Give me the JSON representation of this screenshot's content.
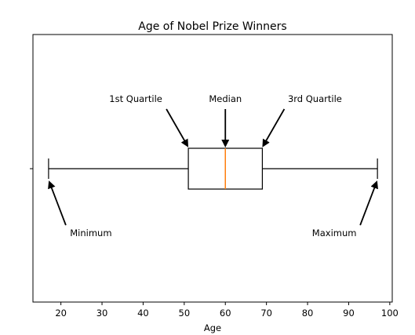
{
  "chart_data": {
    "type": "box",
    "title": "Age of Nobel Prize Winners",
    "xlabel": "Age",
    "ylabel": "",
    "xlim": [
      13.2,
      100.6
    ],
    "xticks": [
      20,
      30,
      40,
      50,
      60,
      70,
      80,
      90,
      100
    ],
    "box": {
      "min": 17,
      "q1": 51,
      "median": 60,
      "q3": 69,
      "max": 97
    },
    "colors": {
      "box": "#000000",
      "median": "#ff7f0e"
    },
    "annotations": [
      {
        "text": "1st Quartile",
        "target": "q1"
      },
      {
        "text": "Median",
        "target": "median"
      },
      {
        "text": "3rd Quartile",
        "target": "q3"
      },
      {
        "text": "Minimum",
        "target": "min"
      },
      {
        "text": "Maximum",
        "target": "max"
      }
    ]
  }
}
